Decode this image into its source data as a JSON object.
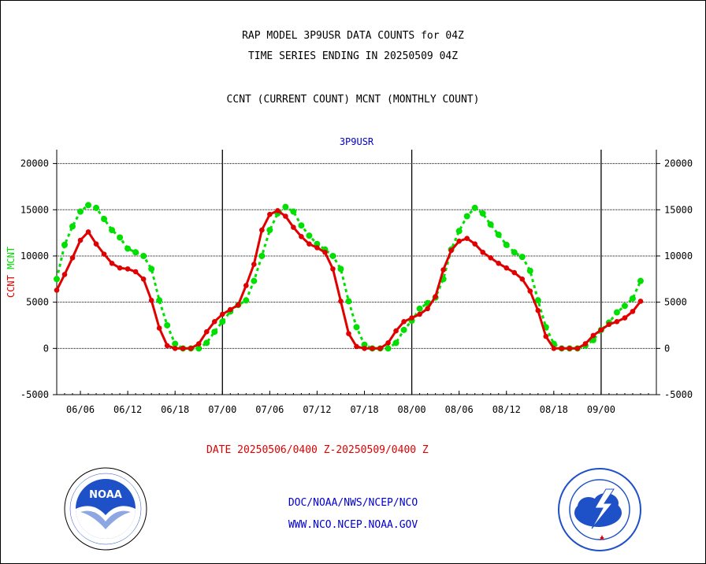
{
  "header": {
    "title_line1": "RAP MODEL 3P9USR DATA COUNTS for 04Z",
    "title_line2": "TIME SERIES ENDING IN 20250509 04Z",
    "subtitle": "CCNT (CURRENT COUNT) MCNT (MONTHLY COUNT)"
  },
  "footer": {
    "date_range": "DATE 20250506/0400 Z-20250509/0400 Z",
    "org": "DOC/NOAA/NWS/NCEP/NCO",
    "url": "WWW.NCO.NCEP.NOAA.GOV"
  },
  "logos": {
    "left_text": "NOAA",
    "left_ring_text": "NATIONAL OCEANIC AND ATMOSPHERIC ADMINISTRATION · U.S. DEPARTMENT OF COMMERCE",
    "right_ring_text": "NATIONAL WEATHER SERVICE"
  },
  "colors": {
    "ccnt": "#e00000",
    "mcnt": "#00e000",
    "blue_text": "#0000cc",
    "red_text": "#e00000"
  },
  "chart_data": {
    "type": "line",
    "title": "3P9USR",
    "ylabel_left": [
      "CCNT",
      "MCNT"
    ],
    "ylim": [
      -5000,
      21500
    ],
    "yticks": [
      -5000,
      0,
      5000,
      10000,
      15000,
      20000
    ],
    "ytick_labels": [
      "-5000",
      "0",
      "5000",
      "10000",
      "15000",
      "20000"
    ],
    "xlim": [
      0,
      76
    ],
    "xtick_labels": [
      {
        "x": 3,
        "label": "06/06"
      },
      {
        "x": 9,
        "label": "06/12"
      },
      {
        "x": 15,
        "label": "06/18"
      },
      {
        "x": 21,
        "label": "07/00"
      },
      {
        "x": 27,
        "label": "07/06"
      },
      {
        "x": 33,
        "label": "07/12"
      },
      {
        "x": 39,
        "label": "07/18"
      },
      {
        "x": 45,
        "label": "08/00"
      },
      {
        "x": 51,
        "label": "08/06"
      },
      {
        "x": 57,
        "label": "08/12"
      },
      {
        "x": 63,
        "label": "08/18"
      },
      {
        "x": 69,
        "label": "09/00"
      }
    ],
    "day_boundaries": [
      21,
      45,
      69
    ],
    "grid": true,
    "series": [
      {
        "name": "CCNT",
        "color": "#e00000",
        "values": [
          6300,
          8000,
          9800,
          11700,
          12600,
          11300,
          10200,
          9200,
          8700,
          8600,
          8300,
          7500,
          5200,
          2200,
          300,
          0,
          0,
          0,
          500,
          1800,
          2900,
          3700,
          4200,
          4700,
          6800,
          9100,
          12800,
          14500,
          14900,
          14300,
          13100,
          12100,
          11300,
          10900,
          10400,
          8600,
          5100,
          1600,
          200,
          0,
          0,
          0,
          600,
          1900,
          2900,
          3300,
          3700,
          4300,
          5600,
          8500,
          10600,
          11600,
          11900,
          11300,
          10400,
          9800,
          9200,
          8700,
          8200,
          7500,
          6200,
          4100,
          1300,
          0,
          0,
          0,
          0,
          500,
          1400,
          2000,
          2600,
          2900,
          3300,
          4000,
          5100
        ]
      },
      {
        "name": "MCNT",
        "color": "#00e000",
        "values": [
          7500,
          11200,
          13200,
          14800,
          15500,
          15200,
          14000,
          12800,
          12000,
          10800,
          10400,
          10000,
          8600,
          5200,
          2500,
          500,
          0,
          0,
          0,
          600,
          1800,
          2900,
          4000,
          4700,
          5200,
          7300,
          10000,
          12800,
          14600,
          15300,
          14800,
          13300,
          12200,
          11300,
          10700,
          10000,
          8600,
          5100,
          2300,
          400,
          0,
          0,
          0,
          600,
          2000,
          3000,
          4300,
          4900,
          5500,
          7500,
          10700,
          12700,
          14300,
          15200,
          14600,
          13400,
          12300,
          11200,
          10400,
          9900,
          8400,
          5200,
          2300,
          500,
          0,
          0,
          0,
          300,
          900,
          2000,
          2800,
          3900,
          4600,
          5400,
          7300
        ]
      }
    ],
    "right_axis_labels": true
  }
}
